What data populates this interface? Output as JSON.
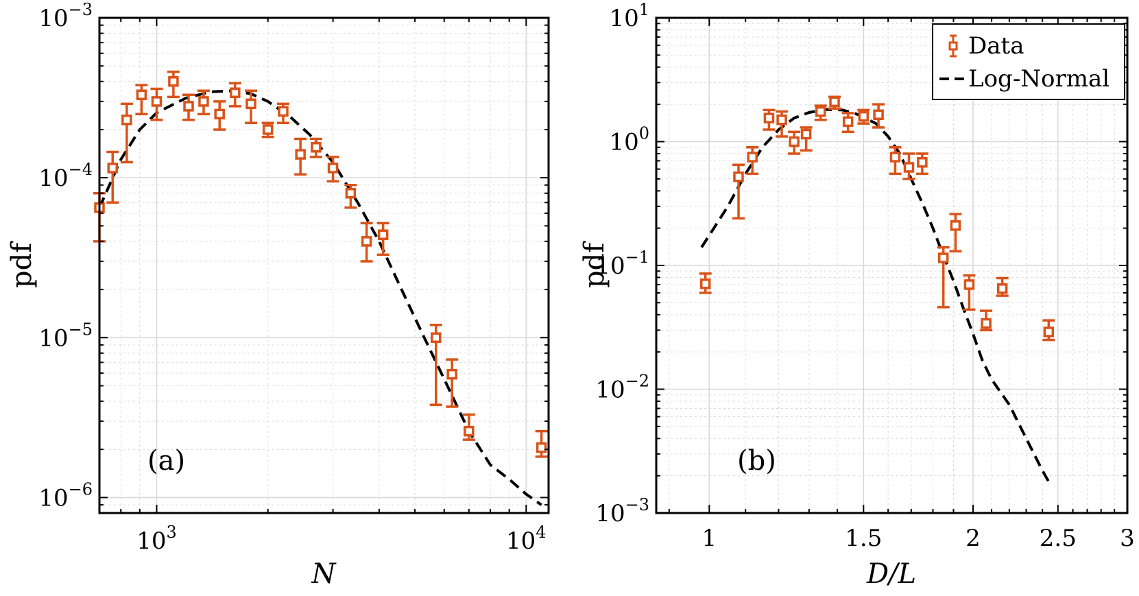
{
  "colors": {
    "data": "#D95319",
    "fit": "#000000",
    "grid": "#d9d9d9",
    "axis": "#000000"
  },
  "legend": {
    "data_label": "Data",
    "fit_label": "Log-Normal",
    "placement": "top-right of panel (b)"
  },
  "chart_data": [
    {
      "type": "scatter",
      "panel_label": "(a)",
      "xscale": "log",
      "yscale": "log",
      "xlabel": "N",
      "ylabel": "pdf",
      "xlim": [
        700,
        11500
      ],
      "ylim": [
        8e-07,
        0.001
      ],
      "xticks": [
        {
          "value": 1000,
          "base": "10",
          "exp": "3"
        },
        {
          "value": 10000,
          "base": "10",
          "exp": "4"
        }
      ],
      "yticks": [
        {
          "value": 1e-06,
          "base": "10",
          "exp": "−6"
        },
        {
          "value": 1e-05,
          "base": "10",
          "exp": "−5"
        },
        {
          "value": 0.0001,
          "base": "10",
          "exp": "−4"
        },
        {
          "value": 0.001,
          "base": "10",
          "exp": "−3"
        }
      ],
      "grid": true,
      "series": [
        {
          "name": "Data",
          "style": "square markers with error bars",
          "points": [
            {
              "x": 700,
              "y": 6.5e-05,
              "lo": 4e-05,
              "hi": 8e-05
            },
            {
              "x": 760,
              "y": 0.000115,
              "lo": 7e-05,
              "hi": 0.000145
            },
            {
              "x": 830,
              "y": 0.00023,
              "lo": 0.000125,
              "hi": 0.00029
            },
            {
              "x": 910,
              "y": 0.00033,
              "lo": 0.00025,
              "hi": 0.00038
            },
            {
              "x": 1000,
              "y": 0.0003,
              "lo": 0.00023,
              "hi": 0.00036
            },
            {
              "x": 1110,
              "y": 0.0004,
              "lo": 0.00032,
              "hi": 0.00046
            },
            {
              "x": 1220,
              "y": 0.00028,
              "lo": 0.00023,
              "hi": 0.00033
            },
            {
              "x": 1340,
              "y": 0.0003,
              "lo": 0.00025,
              "hi": 0.00035
            },
            {
              "x": 1480,
              "y": 0.00025,
              "lo": 0.0002,
              "hi": 0.0003
            },
            {
              "x": 1630,
              "y": 0.00034,
              "lo": 0.00028,
              "hi": 0.00039
            },
            {
              "x": 1800,
              "y": 0.00029,
              "lo": 0.00022,
              "hi": 0.00035
            },
            {
              "x": 2000,
              "y": 0.0002,
              "lo": 0.00018,
              "hi": 0.00022
            },
            {
              "x": 2200,
              "y": 0.00026,
              "lo": 0.00022,
              "hi": 0.00029
            },
            {
              "x": 2450,
              "y": 0.00014,
              "lo": 0.000105,
              "hi": 0.000175
            },
            {
              "x": 2700,
              "y": 0.000155,
              "lo": 0.000135,
              "hi": 0.000175
            },
            {
              "x": 3000,
              "y": 0.000115,
              "lo": 9.5e-05,
              "hi": 0.000135
            },
            {
              "x": 3350,
              "y": 8e-05,
              "lo": 6.5e-05,
              "hi": 9e-05
            },
            {
              "x": 3700,
              "y": 4e-05,
              "lo": 3e-05,
              "hi": 5.2e-05
            },
            {
              "x": 4100,
              "y": 4.4e-05,
              "lo": 3.3e-05,
              "hi": 5.2e-05
            },
            {
              "x": 5700,
              "y": 1e-05,
              "lo": 3.8e-06,
              "hi": 1.2e-05
            },
            {
              "x": 6300,
              "y": 5.9e-06,
              "lo": 3.7e-06,
              "hi": 7.3e-06
            },
            {
              "x": 7000,
              "y": 2.6e-06,
              "lo": 2.3e-06,
              "hi": 3.3e-06
            },
            {
              "x": 11000,
              "y": 2.05e-06,
              "lo": 1.8e-06,
              "hi": 2.6e-06
            }
          ]
        },
        {
          "name": "Log-Normal",
          "style": "dashed line",
          "points": [
            {
              "x": 700,
              "y": 6.5e-05
            },
            {
              "x": 800,
              "y": 0.00013
            },
            {
              "x": 900,
              "y": 0.0002
            },
            {
              "x": 1000,
              "y": 0.000255
            },
            {
              "x": 1200,
              "y": 0.000315
            },
            {
              "x": 1400,
              "y": 0.000345
            },
            {
              "x": 1600,
              "y": 0.00035
            },
            {
              "x": 1800,
              "y": 0.000335
            },
            {
              "x": 2000,
              "y": 0.0003
            },
            {
              "x": 2300,
              "y": 0.00024
            },
            {
              "x": 2600,
              "y": 0.000185
            },
            {
              "x": 3000,
              "y": 0.000125
            },
            {
              "x": 3500,
              "y": 7e-05
            },
            {
              "x": 4000,
              "y": 4e-05
            },
            {
              "x": 4600,
              "y": 2e-05
            },
            {
              "x": 5300,
              "y": 1e-05
            },
            {
              "x": 6000,
              "y": 5.5e-06
            },
            {
              "x": 7000,
              "y": 2.6e-06
            },
            {
              "x": 8000,
              "y": 1.6e-06
            },
            {
              "x": 9000,
              "y": 1.3e-06
            },
            {
              "x": 10000,
              "y": 1.05e-06
            },
            {
              "x": 11000,
              "y": 9e-07
            }
          ]
        }
      ]
    },
    {
      "type": "scatter",
      "panel_label": "(b)",
      "xscale": "log",
      "yscale": "log",
      "xlabel": "D/L",
      "ylabel": "pdf",
      "xlim": [
        0.87,
        3.0
      ],
      "ylim": [
        0.001,
        10
      ],
      "xticks": [
        {
          "value": 1,
          "label": "1"
        },
        {
          "value": 1.5,
          "label": "1.5"
        },
        {
          "value": 2,
          "label": "2"
        },
        {
          "value": 2.5,
          "label": "2.5"
        },
        {
          "value": 3,
          "label": "3"
        }
      ],
      "yticks": [
        {
          "value": 0.001,
          "base": "10",
          "exp": "−3"
        },
        {
          "value": 0.01,
          "base": "10",
          "exp": "−2"
        },
        {
          "value": 0.1,
          "base": "10",
          "exp": "−1"
        },
        {
          "value": 1,
          "base": "10",
          "exp": "0"
        },
        {
          "value": 10,
          "base": "10",
          "exp": "1"
        }
      ],
      "grid": true,
      "series": [
        {
          "name": "Data",
          "style": "square markers with error bars",
          "points": [
            {
              "x": 0.99,
              "y": 0.071,
              "lo": 0.06,
              "hi": 0.086
            },
            {
              "x": 1.08,
              "y": 0.52,
              "lo": 0.24,
              "hi": 0.65
            },
            {
              "x": 1.12,
              "y": 0.75,
              "lo": 0.55,
              "hi": 0.9
            },
            {
              "x": 1.17,
              "y": 1.55,
              "lo": 1.25,
              "hi": 1.8
            },
            {
              "x": 1.21,
              "y": 1.5,
              "lo": 1.1,
              "hi": 1.75
            },
            {
              "x": 1.25,
              "y": 1.0,
              "lo": 0.8,
              "hi": 1.2
            },
            {
              "x": 1.29,
              "y": 1.15,
              "lo": 0.85,
              "hi": 1.3
            },
            {
              "x": 1.34,
              "y": 1.75,
              "lo": 1.5,
              "hi": 1.95
            },
            {
              "x": 1.39,
              "y": 2.1,
              "lo": 1.85,
              "hi": 2.3
            },
            {
              "x": 1.44,
              "y": 1.45,
              "lo": 1.2,
              "hi": 1.7
            },
            {
              "x": 1.5,
              "y": 1.6,
              "lo": 1.4,
              "hi": 1.8
            },
            {
              "x": 1.56,
              "y": 1.65,
              "lo": 1.3,
              "hi": 2.0
            },
            {
              "x": 1.63,
              "y": 0.75,
              "lo": 0.55,
              "hi": 0.9
            },
            {
              "x": 1.69,
              "y": 0.62,
              "lo": 0.5,
              "hi": 0.8
            },
            {
              "x": 1.75,
              "y": 0.68,
              "lo": 0.55,
              "hi": 0.8
            },
            {
              "x": 1.85,
              "y": 0.115,
              "lo": 0.046,
              "hi": 0.14
            },
            {
              "x": 1.91,
              "y": 0.21,
              "lo": 0.13,
              "hi": 0.26
            },
            {
              "x": 1.98,
              "y": 0.07,
              "lo": 0.044,
              "hi": 0.083
            },
            {
              "x": 2.07,
              "y": 0.034,
              "lo": 0.03,
              "hi": 0.043
            },
            {
              "x": 2.16,
              "y": 0.065,
              "lo": 0.057,
              "hi": 0.079
            },
            {
              "x": 2.44,
              "y": 0.029,
              "lo": 0.025,
              "hi": 0.036
            }
          ]
        },
        {
          "name": "Log-Normal",
          "style": "dashed line",
          "points": [
            {
              "x": 0.98,
              "y": 0.14
            },
            {
              "x": 1.05,
              "y": 0.3
            },
            {
              "x": 1.1,
              "y": 0.55
            },
            {
              "x": 1.15,
              "y": 0.9
            },
            {
              "x": 1.2,
              "y": 1.25
            },
            {
              "x": 1.25,
              "y": 1.55
            },
            {
              "x": 1.3,
              "y": 1.72
            },
            {
              "x": 1.36,
              "y": 1.82
            },
            {
              "x": 1.42,
              "y": 1.8
            },
            {
              "x": 1.48,
              "y": 1.65
            },
            {
              "x": 1.55,
              "y": 1.4
            },
            {
              "x": 1.6,
              "y": 1.1
            },
            {
              "x": 1.65,
              "y": 0.8
            },
            {
              "x": 1.7,
              "y": 0.5
            },
            {
              "x": 1.75,
              "y": 0.32
            },
            {
              "x": 1.8,
              "y": 0.2
            },
            {
              "x": 1.85,
              "y": 0.12
            },
            {
              "x": 1.9,
              "y": 0.075
            },
            {
              "x": 1.95,
              "y": 0.045
            },
            {
              "x": 2.0,
              "y": 0.028
            },
            {
              "x": 2.05,
              "y": 0.017
            },
            {
              "x": 2.1,
              "y": 0.012
            },
            {
              "x": 2.2,
              "y": 0.0075
            },
            {
              "x": 2.3,
              "y": 0.004
            },
            {
              "x": 2.4,
              "y": 0.0022
            },
            {
              "x": 2.45,
              "y": 0.0017
            }
          ]
        }
      ]
    }
  ]
}
